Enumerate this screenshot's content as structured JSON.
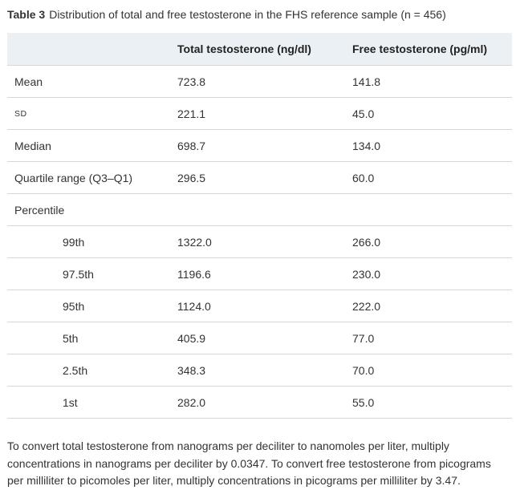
{
  "caption": {
    "label": "Table 3",
    "title": "Distribution of total and free testosterone in the FHS reference sample (n = 456)"
  },
  "table": {
    "headers": [
      "",
      "Total testosterone (ng/dl)",
      "Free testosterone (pg/ml)"
    ],
    "rows": [
      {
        "label": "Mean",
        "total": "723.8",
        "free": "141.8"
      },
      {
        "label": "SD",
        "total": "221.1",
        "free": "45.0"
      },
      {
        "label": "Median",
        "total": "698.7",
        "free": "134.0"
      },
      {
        "label": "Quartile range (Q3–Q1)",
        "total": "296.5",
        "free": "60.0"
      },
      {
        "label": "Percentile",
        "total": "",
        "free": ""
      },
      {
        "label": "99th",
        "total": "1322.0",
        "free": "266.0"
      },
      {
        "label": "97.5th",
        "total": "1196.6",
        "free": "230.0"
      },
      {
        "label": "95th",
        "total": "1124.0",
        "free": "222.0"
      },
      {
        "label": "5th",
        "total": "405.9",
        "free": "77.0"
      },
      {
        "label": "2.5th",
        "total": "348.3",
        "free": "70.0"
      },
      {
        "label": "1st",
        "total": "282.0",
        "free": "55.0"
      }
    ]
  },
  "footnote": "To convert total testosterone from nanograms per deciliter to nanomoles per liter, multiply concentrations in nanograms per deciliter by 0.0347. To convert free testosterone from picograms per milliliter to picomoles per liter, multiply concentrations in picograms per milliliter by 3.47."
}
